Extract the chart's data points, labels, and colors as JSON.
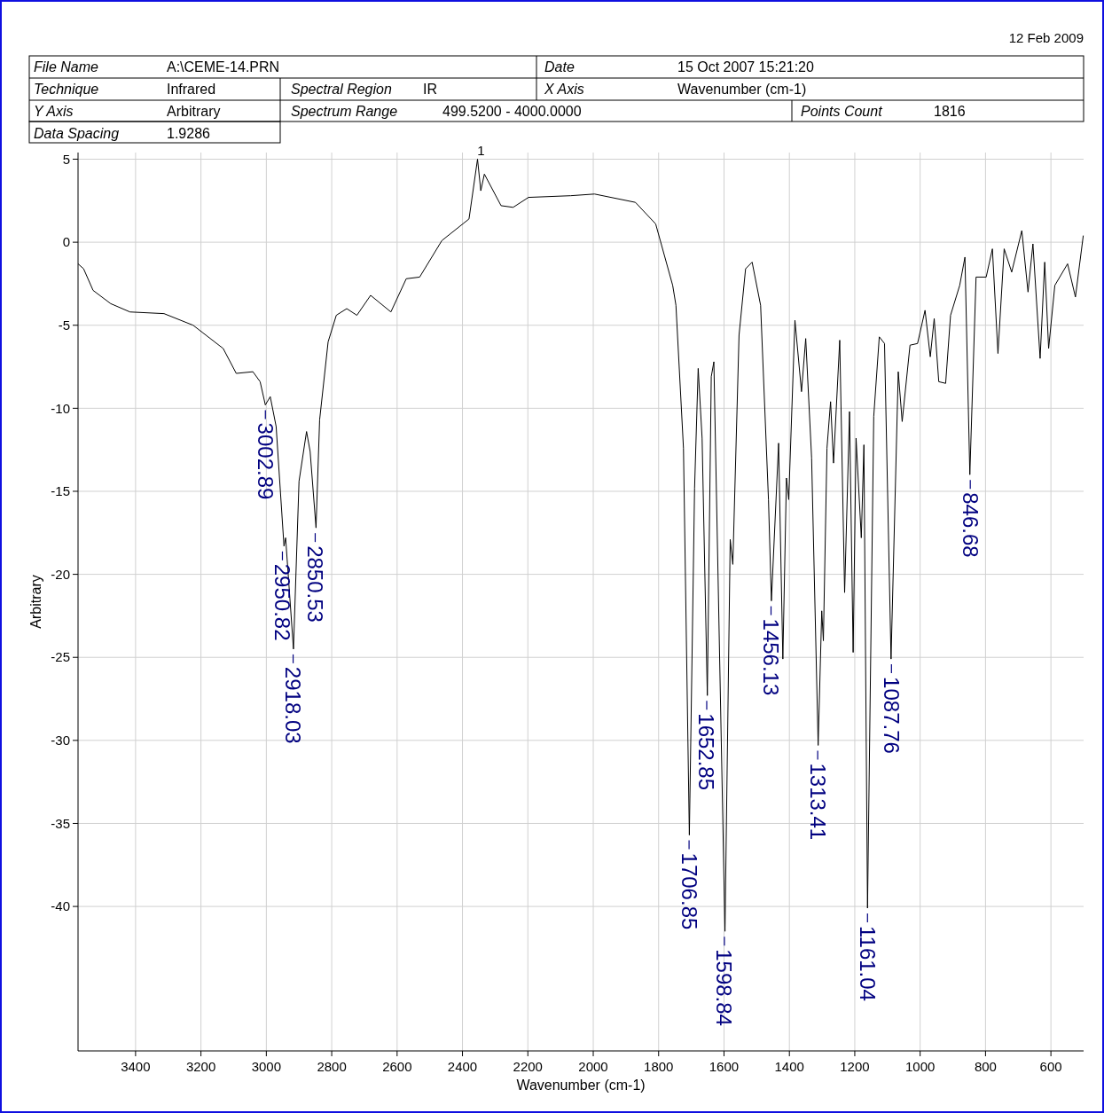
{
  "chart_data": {
    "type": "line",
    "xlabel": "Wavenumber (cm-1)",
    "ylabel": "Arbitrary",
    "xlim": [
      3576,
      500
    ],
    "ylim": [
      -48.7,
      5.4
    ],
    "xticks": [
      3400,
      3200,
      3000,
      2800,
      2600,
      2400,
      2200,
      2000,
      1800,
      1600,
      1400,
      1200,
      1000,
      800,
      600
    ],
    "yticks": [
      5,
      0,
      -5,
      -10,
      -15,
      -20,
      -25,
      -30,
      -35,
      -40
    ],
    "grid": true,
    "series": [
      {
        "color": "#000000",
        "x": [
          3576,
          3559,
          3530,
          3476,
          3417,
          3313,
          3224,
          3132,
          3092,
          3041,
          3019,
          3003,
          2988,
          2970,
          2946,
          2941,
          2917,
          2900,
          2877,
          2866,
          2848,
          2837,
          2811,
          2786,
          2754,
          2723,
          2681,
          2619,
          2572,
          2531,
          2463,
          2380,
          2354,
          2344,
          2333,
          2282,
          2245,
          2198,
          2069,
          1996,
          1871,
          1809,
          1757,
          1747,
          1724,
          1706,
          1690,
          1679,
          1667,
          1651,
          1639,
          1631,
          1597,
          1581,
          1573,
          1554,
          1534,
          1514,
          1488,
          1464,
          1455,
          1433,
          1420,
          1409,
          1402,
          1383,
          1363,
          1350,
          1332,
          1312,
          1301,
          1296,
          1285,
          1274,
          1265,
          1246,
          1231,
          1216,
          1205,
          1196,
          1180,
          1172,
          1161,
          1142,
          1125,
          1109,
          1089,
          1067,
          1055,
          1031,
          1008,
          985,
          969,
          957,
          943,
          922,
          907,
          879,
          863,
          848,
          829,
          798,
          779,
          762,
          743,
          720,
          689,
          670,
          655,
          633,
          619,
          607,
          588,
          549,
          525,
          501
        ],
        "values": [
          -1.3,
          -1.6,
          -2.9,
          -3.7,
          -4.2,
          -4.3,
          -5.0,
          -6.4,
          -7.9,
          -7.8,
          -8.4,
          -9.8,
          -9.3,
          -11.1,
          -18.3,
          -17.8,
          -24.5,
          -14.4,
          -11.4,
          -12.6,
          -17.2,
          -10.7,
          -6.0,
          -4.4,
          -4.0,
          -4.4,
          -3.2,
          -4.2,
          -2.2,
          -2.1,
          0.1,
          1.4,
          5.0,
          3.1,
          4.1,
          2.2,
          2.1,
          2.7,
          2.8,
          2.9,
          2.4,
          1.1,
          -2.6,
          -3.8,
          -12.4,
          -35.7,
          -14.8,
          -7.6,
          -11.8,
          -27.3,
          -8.1,
          -7.2,
          -41.5,
          -17.9,
          -19.4,
          -5.6,
          -1.6,
          -1.2,
          -3.8,
          -15.5,
          -21.6,
          -12.1,
          -25.1,
          -14.2,
          -15.5,
          -4.7,
          -9.0,
          -5.8,
          -13.0,
          -30.3,
          -22.2,
          -24.0,
          -12.4,
          -9.6,
          -13.3,
          -5.9,
          -21.1,
          -10.2,
          -24.7,
          -11.8,
          -17.8,
          -12.2,
          -40.1,
          -10.5,
          -5.7,
          -6.1,
          -25.1,
          -7.8,
          -10.8,
          -6.2,
          -6.1,
          -4.1,
          -6.9,
          -4.6,
          -8.4,
          -8.5,
          -4.4,
          -2.6,
          -0.9,
          -14.0,
          -2.1,
          -2.1,
          -0.4,
          -6.7,
          -0.4,
          -1.8,
          0.7,
          -3.0,
          -0.1,
          -7.0,
          -1.2,
          -6.4,
          -2.6,
          -1.3,
          -3.3,
          0.4
        ]
      }
    ],
    "annotations": [
      "12 Feb 2009",
      "File Name",
      "A:\\CEME-14.PRN",
      "Date",
      "15 Oct 2007 15:21:20",
      "Technique",
      "Infrared",
      "Spectral Region",
      "IR",
      "X Axis",
      "Wavenumber (cm-1)",
      "Y Axis",
      "Arbitrary",
      "Spectrum Range",
      "499.5200 - 4000.0000",
      "Points Count",
      "1816",
      "Data Spacing",
      "1.9286",
      {
        "text": "1",
        "x": 2354,
        "y": 5.0
      },
      {
        "text": "3002.89",
        "x": 3002.89,
        "y": -9.8
      },
      {
        "text": "2950.82",
        "x": 2950.82,
        "y": -18.3
      },
      {
        "text": "2918.03",
        "x": 2918.03,
        "y": -24.5
      },
      {
        "text": "2850.53",
        "x": 2850.53,
        "y": -17.2
      },
      {
        "text": "1706.85",
        "x": 1706.85,
        "y": -35.7
      },
      {
        "text": "1652.85",
        "x": 1652.85,
        "y": -27.3
      },
      {
        "text": "1598.84",
        "x": 1598.84,
        "y": -41.5
      },
      {
        "text": "1456.13",
        "x": 1456.13,
        "y": -21.6
      },
      {
        "text": "1313.41",
        "x": 1313.41,
        "y": -30.3
      },
      {
        "text": "1161.04",
        "x": 1161.04,
        "y": -40.1
      },
      {
        "text": "1087.76",
        "x": 1087.76,
        "y": -25.1
      },
      {
        "text": "846.68",
        "x": 846.68,
        "y": -14.0
      }
    ]
  }
}
